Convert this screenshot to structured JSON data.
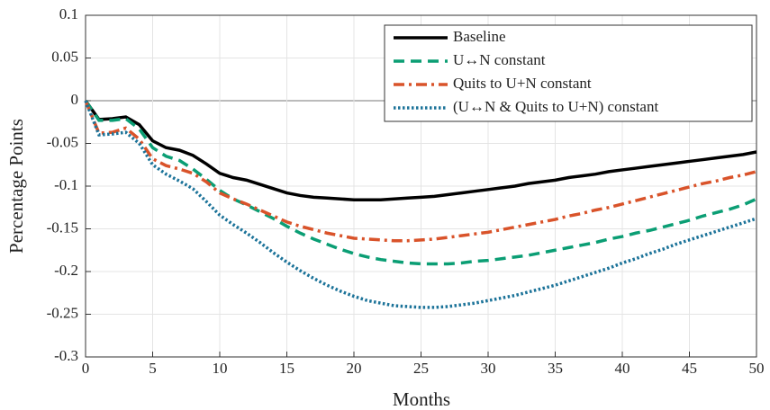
{
  "chart_data": {
    "type": "line",
    "xlabel": "Months",
    "ylabel": "Percentage Points",
    "x": [
      0,
      1,
      2,
      3,
      4,
      5,
      6,
      7,
      8,
      9,
      10,
      11,
      12,
      13,
      14,
      15,
      16,
      17,
      18,
      19,
      20,
      21,
      22,
      23,
      24,
      25,
      26,
      27,
      28,
      29,
      30,
      31,
      32,
      33,
      34,
      35,
      36,
      37,
      38,
      39,
      40,
      41,
      42,
      43,
      44,
      45,
      46,
      47,
      48,
      49,
      50
    ],
    "series": [
      {
        "name": "Baseline",
        "color": "#000000",
        "style": "solid",
        "values": [
          0,
          -0.022,
          -0.021,
          -0.019,
          -0.028,
          -0.047,
          -0.055,
          -0.058,
          -0.064,
          -0.074,
          -0.085,
          -0.09,
          -0.093,
          -0.098,
          -0.103,
          -0.108,
          -0.111,
          -0.113,
          -0.114,
          -0.115,
          -0.116,
          -0.116,
          -0.116,
          -0.115,
          -0.114,
          -0.113,
          -0.112,
          -0.11,
          -0.108,
          -0.106,
          -0.104,
          -0.102,
          -0.1,
          -0.097,
          -0.095,
          -0.093,
          -0.09,
          -0.088,
          -0.086,
          -0.083,
          -0.081,
          -0.079,
          -0.077,
          -0.075,
          -0.073,
          -0.071,
          -0.069,
          -0.067,
          -0.065,
          -0.063,
          -0.06
        ]
      },
      {
        "name": "U↔N constant",
        "color": "#0b9e74",
        "style": "dashed",
        "values": [
          0,
          -0.023,
          -0.023,
          -0.021,
          -0.033,
          -0.055,
          -0.065,
          -0.07,
          -0.08,
          -0.092,
          -0.105,
          -0.115,
          -0.122,
          -0.13,
          -0.138,
          -0.147,
          -0.155,
          -0.162,
          -0.168,
          -0.174,
          -0.179,
          -0.183,
          -0.186,
          -0.188,
          -0.19,
          -0.191,
          -0.191,
          -0.191,
          -0.19,
          -0.188,
          -0.187,
          -0.185,
          -0.183,
          -0.181,
          -0.178,
          -0.175,
          -0.172,
          -0.169,
          -0.166,
          -0.162,
          -0.159,
          -0.155,
          -0.152,
          -0.148,
          -0.144,
          -0.14,
          -0.135,
          -0.131,
          -0.127,
          -0.122,
          -0.115
        ]
      },
      {
        "name": "Quits to U+N constant",
        "color": "#d9532a",
        "style": "dashdot",
        "values": [
          0,
          -0.038,
          -0.037,
          -0.032,
          -0.045,
          -0.068,
          -0.076,
          -0.08,
          -0.085,
          -0.095,
          -0.108,
          -0.115,
          -0.121,
          -0.128,
          -0.135,
          -0.142,
          -0.147,
          -0.151,
          -0.155,
          -0.158,
          -0.161,
          -0.162,
          -0.163,
          -0.164,
          -0.164,
          -0.163,
          -0.162,
          -0.16,
          -0.158,
          -0.156,
          -0.154,
          -0.151,
          -0.148,
          -0.145,
          -0.142,
          -0.139,
          -0.135,
          -0.132,
          -0.128,
          -0.125,
          -0.121,
          -0.117,
          -0.113,
          -0.109,
          -0.105,
          -0.101,
          -0.097,
          -0.094,
          -0.09,
          -0.087,
          -0.083
        ]
      },
      {
        "name": "(U↔N & Quits to U+N) constant",
        "color": "#1c7399",
        "style": "dotted",
        "values": [
          0,
          -0.04,
          -0.039,
          -0.037,
          -0.05,
          -0.075,
          -0.086,
          -0.094,
          -0.103,
          -0.118,
          -0.134,
          -0.145,
          -0.155,
          -0.166,
          -0.178,
          -0.189,
          -0.199,
          -0.208,
          -0.216,
          -0.223,
          -0.229,
          -0.234,
          -0.237,
          -0.24,
          -0.241,
          -0.242,
          -0.242,
          -0.241,
          -0.239,
          -0.237,
          -0.234,
          -0.231,
          -0.228,
          -0.224,
          -0.22,
          -0.216,
          -0.211,
          -0.206,
          -0.201,
          -0.196,
          -0.19,
          -0.185,
          -0.179,
          -0.174,
          -0.168,
          -0.163,
          -0.158,
          -0.153,
          -0.148,
          -0.143,
          -0.138
        ]
      }
    ],
    "xlim": [
      0,
      50
    ],
    "xticks": [
      0,
      5,
      10,
      15,
      20,
      25,
      30,
      35,
      40,
      45,
      50
    ],
    "ylim": [
      -0.3,
      0.1
    ],
    "yticks": [
      0.1,
      0.05,
      0,
      -0.05,
      -0.1,
      -0.15,
      -0.2,
      -0.25,
      -0.3
    ],
    "grid": true,
    "legend": "upper right"
  }
}
